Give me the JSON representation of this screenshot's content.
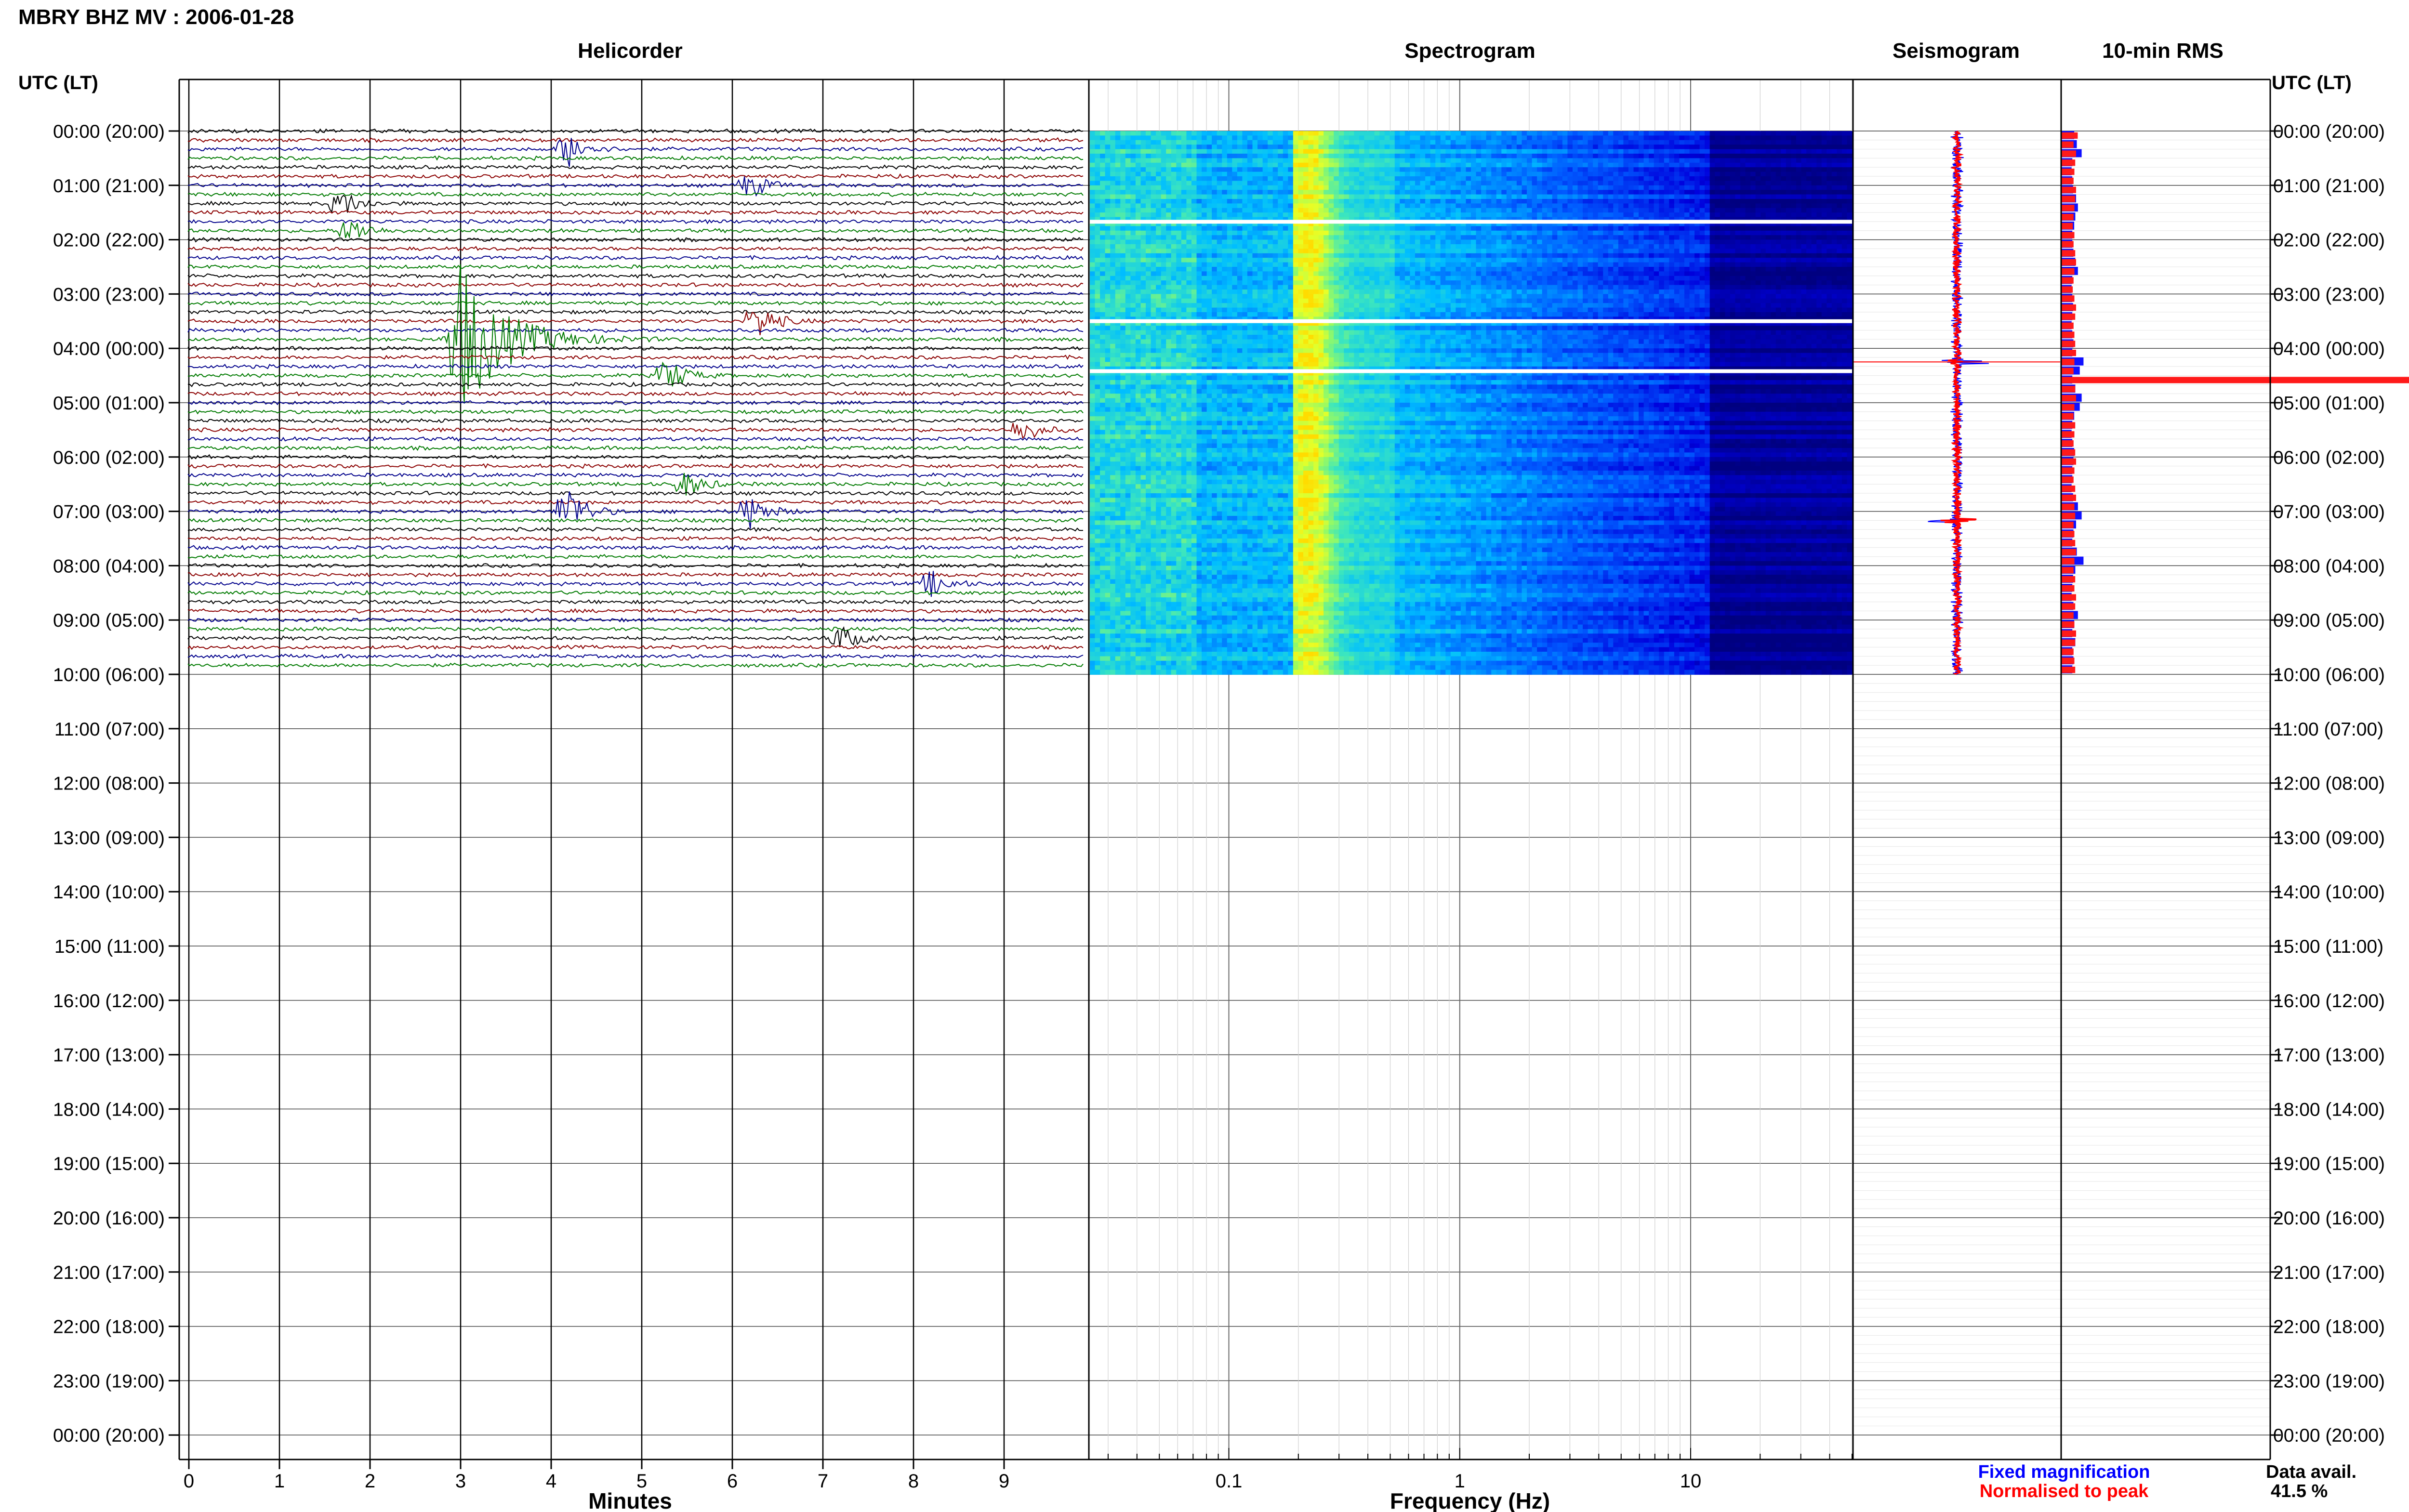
{
  "title": "MBRY BHZ MV : 2006-01-28",
  "panels": {
    "helicorder": "Helicorder",
    "spectrogram": "Spectrogram",
    "seismogram": "Seismogram",
    "rms": "10-min RMS"
  },
  "time_axis_label": "UTC (LT)",
  "time_ticks": [
    "00:00 (20:00)",
    "01:00 (21:00)",
    "02:00 (22:00)",
    "03:00 (23:00)",
    "04:00 (00:00)",
    "05:00 (01:00)",
    "06:00 (02:00)",
    "07:00 (03:00)",
    "08:00 (04:00)",
    "09:00 (05:00)",
    "10:00 (06:00)",
    "11:00 (07:00)",
    "12:00 (08:00)",
    "13:00 (09:00)",
    "14:00 (10:00)",
    "15:00 (11:00)",
    "16:00 (12:00)",
    "17:00 (13:00)",
    "18:00 (14:00)",
    "19:00 (15:00)",
    "20:00 (16:00)",
    "21:00 (17:00)",
    "22:00 (18:00)",
    "23:00 (19:00)",
    "00:00 (20:00)"
  ],
  "helicorder_xlabel": "Minutes",
  "minute_ticks": [
    "0",
    "1",
    "2",
    "3",
    "4",
    "5",
    "6",
    "7",
    "8",
    "9"
  ],
  "spectrogram_xlabel": "Frequency (Hz)",
  "freq_ticks": [
    "0.1",
    "1",
    "10"
  ],
  "legend": {
    "fixed": "Fixed magnification",
    "normalised": "Normalised to peak"
  },
  "data_avail_label": "Data avail.",
  "data_avail_value": "41.5 %",
  "colors": {
    "trace_black": "#000000",
    "trace_red": "#8b0000",
    "trace_blue": "#00008b",
    "trace_green": "#007a00",
    "legend_blue": "#0000ff",
    "legend_red": "#ff0000",
    "rms_blue": "#1010ff",
    "rms_red": "#ff1a1a"
  },
  "chart_data": [
    {
      "type": "line",
      "name": "helicorder",
      "title": "Helicorder",
      "xlabel": "Minutes",
      "xlim": [
        0,
        10
      ],
      "rows_per_hour": 6,
      "data_hours": 10,
      "events": [
        {
          "hour": 3.83,
          "minute": 3.0,
          "amplitude": 9,
          "color": "#8b0000"
        },
        {
          "hour": 0.33,
          "minute": 4.2,
          "amplitude": 2,
          "color": "#00008b"
        },
        {
          "hour": 1.33,
          "minute": 1.7,
          "amplitude": 1.5,
          "color": "#000000"
        },
        {
          "hour": 1.0,
          "minute": 6.2,
          "amplitude": 1.5,
          "color": "#007a00"
        },
        {
          "hour": 1.83,
          "minute": 1.8,
          "amplitude": 1.5,
          "color": "#000000"
        },
        {
          "hour": 3.5,
          "minute": 6.3,
          "amplitude": 2,
          "color": "#8b0000"
        },
        {
          "hour": 4.5,
          "minute": 5.3,
          "amplitude": 2,
          "color": "#007a00"
        },
        {
          "hour": 5.5,
          "minute": 9.2,
          "amplitude": 1.5,
          "color": "#8b0000"
        },
        {
          "hour": 6.5,
          "minute": 5.5,
          "amplitude": 1.5,
          "color": "#007a00"
        },
        {
          "hour": 7.0,
          "minute": 4.2,
          "amplitude": 3,
          "color": "#007a00"
        },
        {
          "hour": 7.0,
          "minute": 6.2,
          "amplitude": 2,
          "color": "#00008b"
        },
        {
          "hour": 8.33,
          "minute": 8.2,
          "amplitude": 1.5,
          "color": "#00008b"
        },
        {
          "hour": 9.33,
          "minute": 7.2,
          "amplitude": 1.5,
          "color": "#000000"
        }
      ]
    },
    {
      "type": "heatmap",
      "name": "spectrogram",
      "title": "Spectrogram",
      "xlabel": "Frequency (Hz)",
      "xscale": "log",
      "xlim": [
        0.025,
        50
      ],
      "data_hours": 10,
      "peak_frequency_hz": 0.22,
      "gaps_hours": [
        1.67,
        3.5,
        4.42
      ]
    },
    {
      "type": "line",
      "name": "seismogram",
      "title": "Seismogram",
      "data_hours": 10,
      "spike_hours": [
        4.25,
        7.17
      ]
    },
    {
      "type": "bar",
      "name": "rms",
      "title": "10-min RMS",
      "orientation": "horizontal",
      "interval_minutes": 10,
      "series": [
        {
          "name": "Fixed magnification",
          "values": [
            0.35,
            0.42,
            0.55,
            0.3,
            0.28,
            0.3,
            0.32,
            0.4,
            0.45,
            0.38,
            0.35,
            0.3,
            0.3,
            0.33,
            0.38,
            0.45,
            0.3,
            0.28,
            0.3,
            0.32,
            0.3,
            0.28,
            0.3,
            0.33,
            0.3,
            0.6,
            0.5,
            0.3,
            0.38,
            0.55,
            0.5,
            0.35,
            0.3,
            0.28,
            0.3,
            0.35,
            0.33,
            0.3,
            0.3,
            0.28,
            0.32,
            0.45,
            0.55,
            0.4,
            0.33,
            0.3,
            0.42,
            0.6,
            0.38,
            0.32,
            0.3,
            0.28,
            0.33,
            0.45,
            0.35,
            0.3,
            0.38,
            0.3,
            0.33,
            0.3
          ]
        },
        {
          "name": "Normalised to peak",
          "values": [
            0.2,
            0.15,
            0.18,
            0.17,
            0.16,
            0.15,
            0.18,
            0.17,
            0.16,
            0.15,
            0.14,
            0.16,
            0.15,
            0.17,
            0.18,
            0.16,
            0.15,
            0.14,
            0.16,
            0.18,
            0.17,
            0.15,
            0.16,
            0.17,
            0.18,
            0.16,
            0.15,
            1.0,
            0.17,
            0.18,
            0.16,
            0.15,
            0.17,
            0.16,
            0.15,
            0.17,
            0.18,
            0.16,
            0.15,
            0.17,
            0.18,
            0.16,
            0.17,
            0.15,
            0.16,
            0.17,
            0.18,
            0.16,
            0.15,
            0.17,
            0.16,
            0.18,
            0.17,
            0.15,
            0.16,
            0.18,
            0.17,
            0.15,
            0.16,
            0.17
          ]
        }
      ]
    }
  ]
}
